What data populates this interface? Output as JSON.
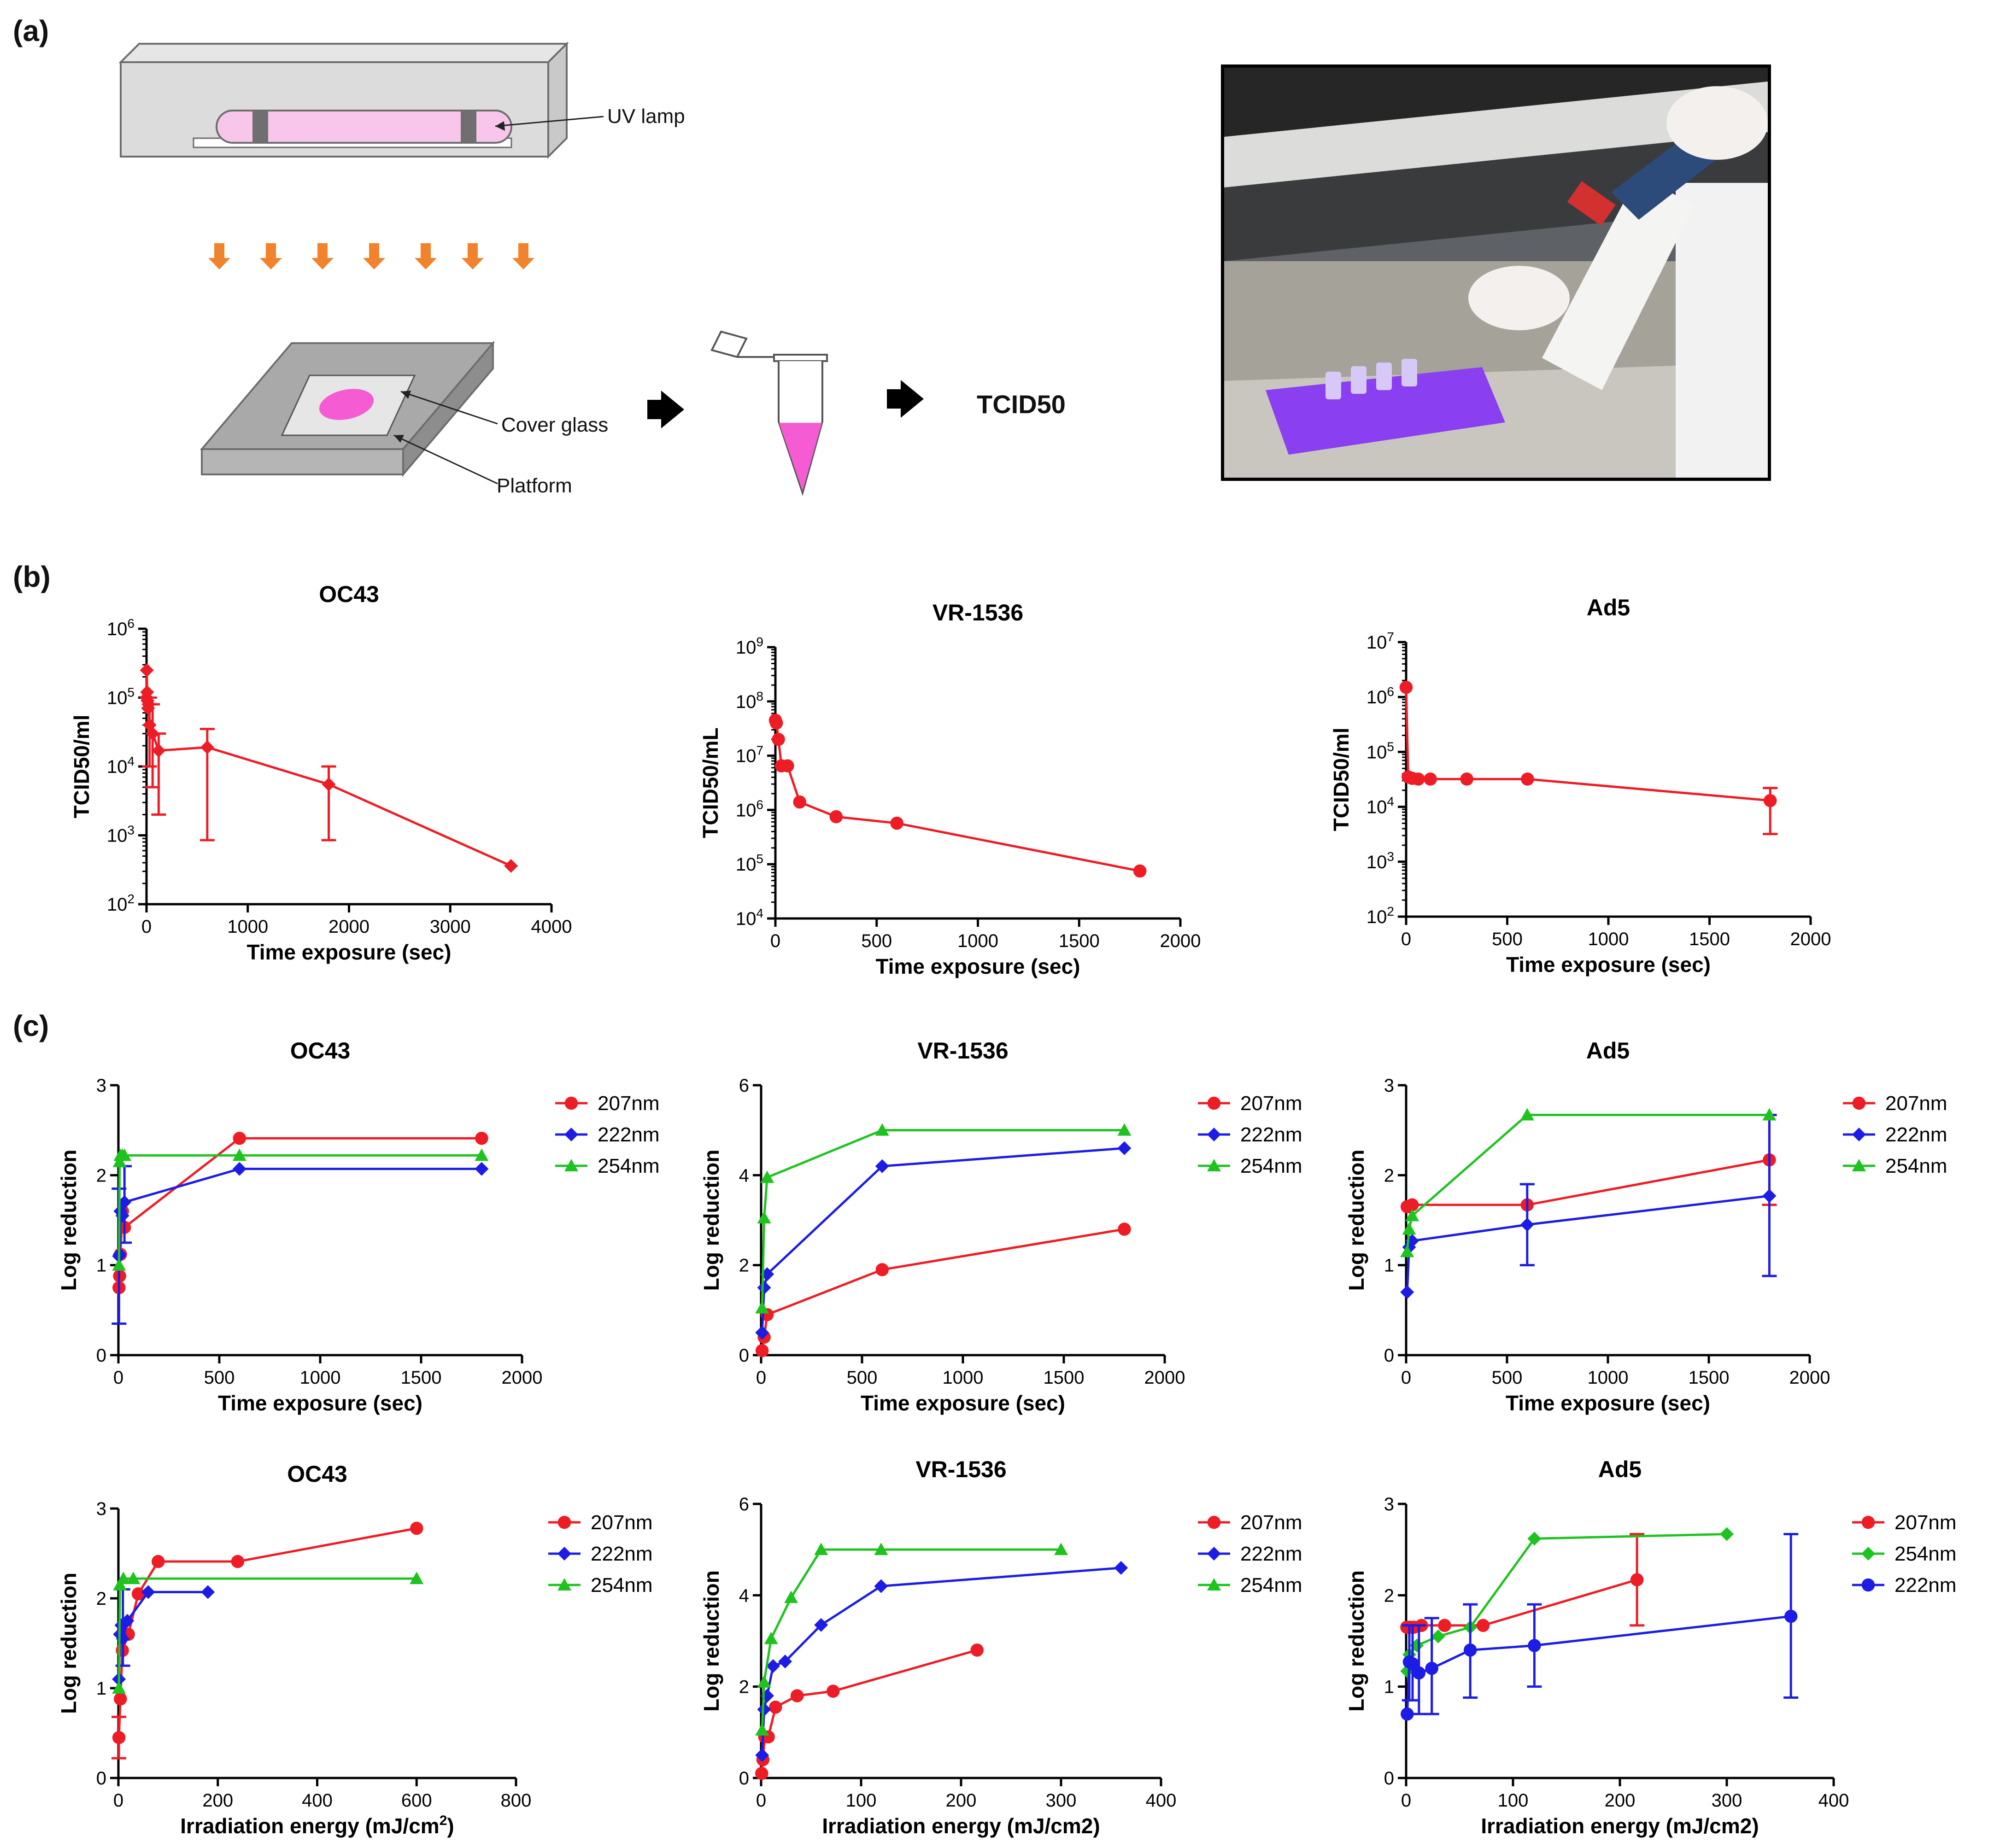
{
  "panel_labels": [
    "(a)",
    "(b)",
    "(c)"
  ],
  "diagram": {
    "uv_lamp_label": "UV lamp",
    "cover_glass_label": "Cover glass",
    "platform_label": "Platform",
    "assay_label": "TCID50"
  },
  "colors": {
    "red": "#ee1c25",
    "blue": "#1c1ce6",
    "green": "#1fc31f"
  },
  "chart_data": [
    {
      "id": "b1",
      "type": "line",
      "title": "OC43",
      "xlabel": "Time exposure (sec)",
      "ylabel": "TCID50/ml",
      "xscale": "linear",
      "yscale": "log",
      "xlim": [
        0,
        4000
      ],
      "ylim": [
        100,
        1000000
      ],
      "xticks": [
        "0",
        "1000",
        "2000",
        "3000",
        "4000"
      ],
      "yticks": [
        "10^2",
        "10^3",
        "10^4",
        "10^5",
        "10^6"
      ],
      "series": [
        {
          "name": "OC43",
          "color": "#ee1c25",
          "marker": "diamond",
          "x": [
            0,
            3,
            6,
            10,
            15,
            20,
            30,
            60,
            120,
            600,
            1800,
            3600
          ],
          "y": [
            100000,
            250000,
            120000,
            90000,
            70000,
            80000,
            40000,
            30000,
            17000,
            19000,
            5500,
            360
          ],
          "err_low": [
            null,
            null,
            null,
            null,
            null,
            null,
            10000,
            5000,
            2000,
            850,
            850,
            null
          ],
          "err_high": [
            null,
            null,
            null,
            null,
            null,
            null,
            100000,
            80000,
            30000,
            35000,
            10000,
            null
          ]
        }
      ]
    },
    {
      "id": "b2",
      "type": "line",
      "title": "VR-1536",
      "xlabel": "Time exposure (sec)",
      "ylabel": "TCID50/mL",
      "xscale": "linear",
      "yscale": "log",
      "xlim": [
        0,
        2000
      ],
      "ylim": [
        10000,
        1000000000
      ],
      "xticks": [
        "0",
        "500",
        "1000",
        "1500",
        "2000"
      ],
      "yticks": [
        "10^4",
        "10^5",
        "10^6",
        "10^7",
        "10^8",
        "10^9"
      ],
      "series": [
        {
          "name": "VR-1536",
          "color": "#ee1c25",
          "marker": "circle",
          "x": [
            0,
            5,
            15,
            30,
            60,
            120,
            300,
            600,
            1800
          ],
          "y": [
            45000000,
            40000000,
            20000000,
            6500000,
            6500000,
            1400000,
            750000,
            570000,
            75000
          ]
        }
      ]
    },
    {
      "id": "b3",
      "type": "line",
      "title": "Ad5",
      "xlabel": "Time exposure (sec)",
      "ylabel": "TCID50/ml",
      "xscale": "linear",
      "yscale": "log",
      "xlim": [
        0,
        2000
      ],
      "ylim": [
        100,
        10000000
      ],
      "xticks": [
        "0",
        "500",
        "1000",
        "1500",
        "2000"
      ],
      "yticks": [
        "10^2",
        "10^3",
        "10^4",
        "10^5",
        "10^6",
        "10^7"
      ],
      "series": [
        {
          "name": "Ad5",
          "color": "#ee1c25",
          "marker": "circle",
          "x": [
            0,
            10,
            30,
            60,
            120,
            300,
            600,
            1800
          ],
          "y": [
            1500000,
            35000,
            33000,
            32000,
            32000,
            32000,
            32000,
            13000
          ],
          "err_low": [
            null,
            null,
            null,
            null,
            null,
            null,
            null,
            3200
          ],
          "err_high": [
            null,
            null,
            null,
            null,
            null,
            null,
            null,
            22000
          ]
        }
      ]
    },
    {
      "id": "c1",
      "type": "line",
      "title": "OC43",
      "xlabel": "Time exposure (sec)",
      "ylabel": "Log reduction",
      "xlim": [
        0,
        2000
      ],
      "ylim": [
        0,
        3
      ],
      "xticks": [
        "0",
        "500",
        "1000",
        "1500",
        "2000"
      ],
      "yticks": [
        "0",
        "1",
        "2",
        "3"
      ],
      "series": [
        {
          "name": "207nm",
          "color": "#ee1c25",
          "marker": "circle",
          "x": [
            3,
            6,
            10,
            20,
            30,
            600,
            1800
          ],
          "y": [
            0.75,
            0.88,
            1.12,
            1.6,
            1.42,
            2.41,
            2.41
          ]
        },
        {
          "name": "222nm",
          "color": "#1c1ce6",
          "marker": "diamond",
          "x": [
            3,
            6,
            10,
            20,
            30,
            600,
            1800
          ],
          "y": [
            1.1,
            1.12,
            1.6,
            1.55,
            1.7,
            2.07,
            2.07
          ],
          "err_low": [
            0.35,
            null,
            null,
            null,
            1.25,
            null,
            null
          ],
          "err_high": [
            1.85,
            null,
            null,
            null,
            2.1,
            null,
            null
          ]
        },
        {
          "name": "254nm",
          "color": "#1fc31f",
          "marker": "triangle",
          "x": [
            3,
            6,
            10,
            20,
            30,
            600,
            1800
          ],
          "y": [
            1.0,
            2.15,
            2.22,
            2.22,
            2.22,
            2.22,
            2.22
          ]
        }
      ]
    },
    {
      "id": "c2",
      "type": "line",
      "title": "VR-1536",
      "xlabel": "Time exposure (sec)",
      "ylabel": "Log reduction",
      "xlim": [
        0,
        2000
      ],
      "ylim": [
        0,
        6
      ],
      "xticks": [
        "0",
        "500",
        "1000",
        "1500",
        "2000"
      ],
      "yticks": [
        "0",
        "2",
        "4",
        "6"
      ],
      "series": [
        {
          "name": "207nm",
          "color": "#ee1c25",
          "marker": "circle",
          "x": [
            5,
            15,
            30,
            600,
            1800
          ],
          "y": [
            0.1,
            0.4,
            0.9,
            1.9,
            2.8
          ]
        },
        {
          "name": "222nm",
          "color": "#1c1ce6",
          "marker": "diamond",
          "x": [
            5,
            15,
            30,
            600,
            1800
          ],
          "y": [
            0.5,
            1.5,
            1.8,
            4.2,
            4.6
          ]
        },
        {
          "name": "254nm",
          "color": "#1fc31f",
          "marker": "triangle",
          "x": [
            5,
            15,
            30,
            600,
            1800
          ],
          "y": [
            1.05,
            3.05,
            3.95,
            5.0,
            5.0
          ]
        }
      ]
    },
    {
      "id": "c3",
      "type": "line",
      "title": "Ad5",
      "xlabel": "Time exposure (sec)",
      "ylabel": "Log reduction",
      "xlim": [
        0,
        2000
      ],
      "ylim": [
        0,
        3
      ],
      "xticks": [
        "0",
        "500",
        "1000",
        "1500",
        "2000"
      ],
      "yticks": [
        "0",
        "1",
        "2",
        "3"
      ],
      "series": [
        {
          "name": "207nm",
          "color": "#ee1c25",
          "marker": "circle",
          "x": [
            5,
            15,
            30,
            600,
            1800
          ],
          "y": [
            1.65,
            1.65,
            1.67,
            1.67,
            2.17
          ],
          "err_low": [
            null,
            null,
            null,
            null,
            1.67
          ],
          "err_high": [
            null,
            null,
            null,
            null,
            2.67
          ]
        },
        {
          "name": "222nm",
          "color": "#1c1ce6",
          "marker": "diamond",
          "x": [
            5,
            15,
            30,
            600,
            1800
          ],
          "y": [
            0.7,
            1.2,
            1.27,
            1.45,
            1.77
          ],
          "err_low": [
            null,
            null,
            null,
            1.0,
            0.88
          ],
          "err_high": [
            null,
            null,
            null,
            1.9,
            2.67
          ]
        },
        {
          "name": "254nm",
          "color": "#1fc31f",
          "marker": "triangle",
          "x": [
            5,
            15,
            30,
            600,
            1800
          ],
          "y": [
            1.15,
            1.4,
            1.55,
            2.67,
            2.67
          ]
        }
      ]
    },
    {
      "id": "d1",
      "type": "line",
      "title": "OC43",
      "xlabel": "Irradiation energy (mJ/cm",
      "xlabel_sup": "2",
      "xlabel_end": ")",
      "ylabel": "Log reduction",
      "xlim": [
        0,
        800
      ],
      "ylim": [
        0,
        3
      ],
      "xticks": [
        "0",
        "200",
        "400",
        "600",
        "800"
      ],
      "yticks": [
        "0",
        "1",
        "2",
        "3"
      ],
      "series": [
        {
          "name": "207nm",
          "color": "#ee1c25",
          "marker": "circle",
          "x": [
            1,
            4,
            8,
            20,
            40,
            80,
            240,
            600
          ],
          "y": [
            0.45,
            0.88,
            1.42,
            1.6,
            2.05,
            2.41,
            2.41,
            2.78
          ],
          "err_low": [
            0.22,
            null,
            null,
            null,
            null,
            null,
            null,
            null
          ],
          "err_high": [
            0.68,
            null,
            null,
            null,
            null,
            null,
            null,
            null
          ]
        },
        {
          "name": "222nm",
          "color": "#1c1ce6",
          "marker": "diamond",
          "x": [
            1,
            3,
            6,
            9,
            18,
            60,
            180
          ],
          "y": [
            1.1,
            1.6,
            1.7,
            1.55,
            1.75,
            2.07,
            2.07
          ],
          "err_low": [
            null,
            null,
            null,
            1.25,
            null,
            null,
            null
          ],
          "err_high": [
            null,
            null,
            null,
            2.1,
            null,
            null,
            null
          ]
        },
        {
          "name": "254nm",
          "color": "#1fc31f",
          "marker": "triangle",
          "x": [
            1,
            3,
            10,
            30,
            600
          ],
          "y": [
            1.0,
            2.15,
            2.22,
            2.22,
            2.22
          ]
        }
      ]
    },
    {
      "id": "d2",
      "type": "line",
      "title": "VR-1536",
      "xlabel": "Irradiation energy (mJ/cm2)",
      "ylabel": "Log reduction",
      "xlim": [
        0,
        400
      ],
      "ylim": [
        0,
        6
      ],
      "xticks": [
        "0",
        "100",
        "200",
        "300",
        "400"
      ],
      "yticks": [
        "0",
        "2",
        "4",
        "6"
      ],
      "series": [
        {
          "name": "207nm",
          "color": "#ee1c25",
          "marker": "circle",
          "x": [
            0.6,
            1.8,
            3.6,
            7.2,
            14.4,
            36,
            72,
            216
          ],
          "y": [
            0.1,
            0.4,
            0.9,
            0.9,
            1.55,
            1.8,
            1.9,
            2.8
          ]
        },
        {
          "name": "222nm",
          "color": "#1c1ce6",
          "marker": "diamond",
          "x": [
            1,
            3,
            6,
            12,
            24,
            60,
            120,
            360
          ],
          "y": [
            0.5,
            1.5,
            1.8,
            2.45,
            2.55,
            3.35,
            4.2,
            4.6
          ]
        },
        {
          "name": "254nm",
          "color": "#1fc31f",
          "marker": "triangle",
          "x": [
            1,
            3,
            10,
            30,
            60,
            120,
            300
          ],
          "y": [
            1.05,
            2.1,
            3.05,
            3.95,
            5.0,
            5.0,
            5.0
          ]
        }
      ]
    },
    {
      "id": "d3",
      "type": "line",
      "title": "Ad5",
      "xlabel": "Irradiation energy (mJ/cm2)",
      "ylabel": "Log reduction",
      "xlim": [
        0,
        400
      ],
      "ylim": [
        0,
        3
      ],
      "xticks": [
        "0",
        "100",
        "200",
        "300",
        "400"
      ],
      "yticks": [
        "0",
        "1",
        "2",
        "3"
      ],
      "series": [
        {
          "name": "207nm",
          "color": "#ee1c25",
          "marker": "circle",
          "x": [
            0.6,
            1.8,
            3.6,
            7.2,
            14.4,
            36,
            72,
            216
          ],
          "y": [
            1.65,
            1.65,
            1.65,
            1.65,
            1.67,
            1.67,
            1.67,
            2.17
          ],
          "err_low": [
            null,
            null,
            null,
            null,
            null,
            null,
            null,
            1.67
          ],
          "err_high": [
            null,
            null,
            null,
            null,
            null,
            null,
            null,
            2.67
          ]
        },
        {
          "name": "254nm",
          "color": "#1fc31f",
          "marker": "diamond",
          "x": [
            1,
            3,
            10,
            30,
            60,
            120,
            300
          ],
          "y": [
            1.17,
            1.35,
            1.45,
            1.55,
            1.65,
            2.62,
            2.67
          ]
        },
        {
          "name": "222nm",
          "color": "#1c1ce6",
          "marker": "circle",
          "x": [
            1,
            3,
            6,
            12,
            24,
            60,
            120,
            360
          ],
          "y": [
            0.7,
            1.27,
            1.25,
            1.15,
            1.2,
            1.4,
            1.45,
            1.77
          ],
          "err_low": [
            null,
            0.85,
            0.85,
            0.7,
            0.7,
            0.88,
            1.0,
            0.88
          ],
          "err_high": [
            null,
            1.67,
            1.67,
            1.67,
            1.75,
            1.9,
            1.9,
            2.67
          ]
        }
      ]
    }
  ]
}
